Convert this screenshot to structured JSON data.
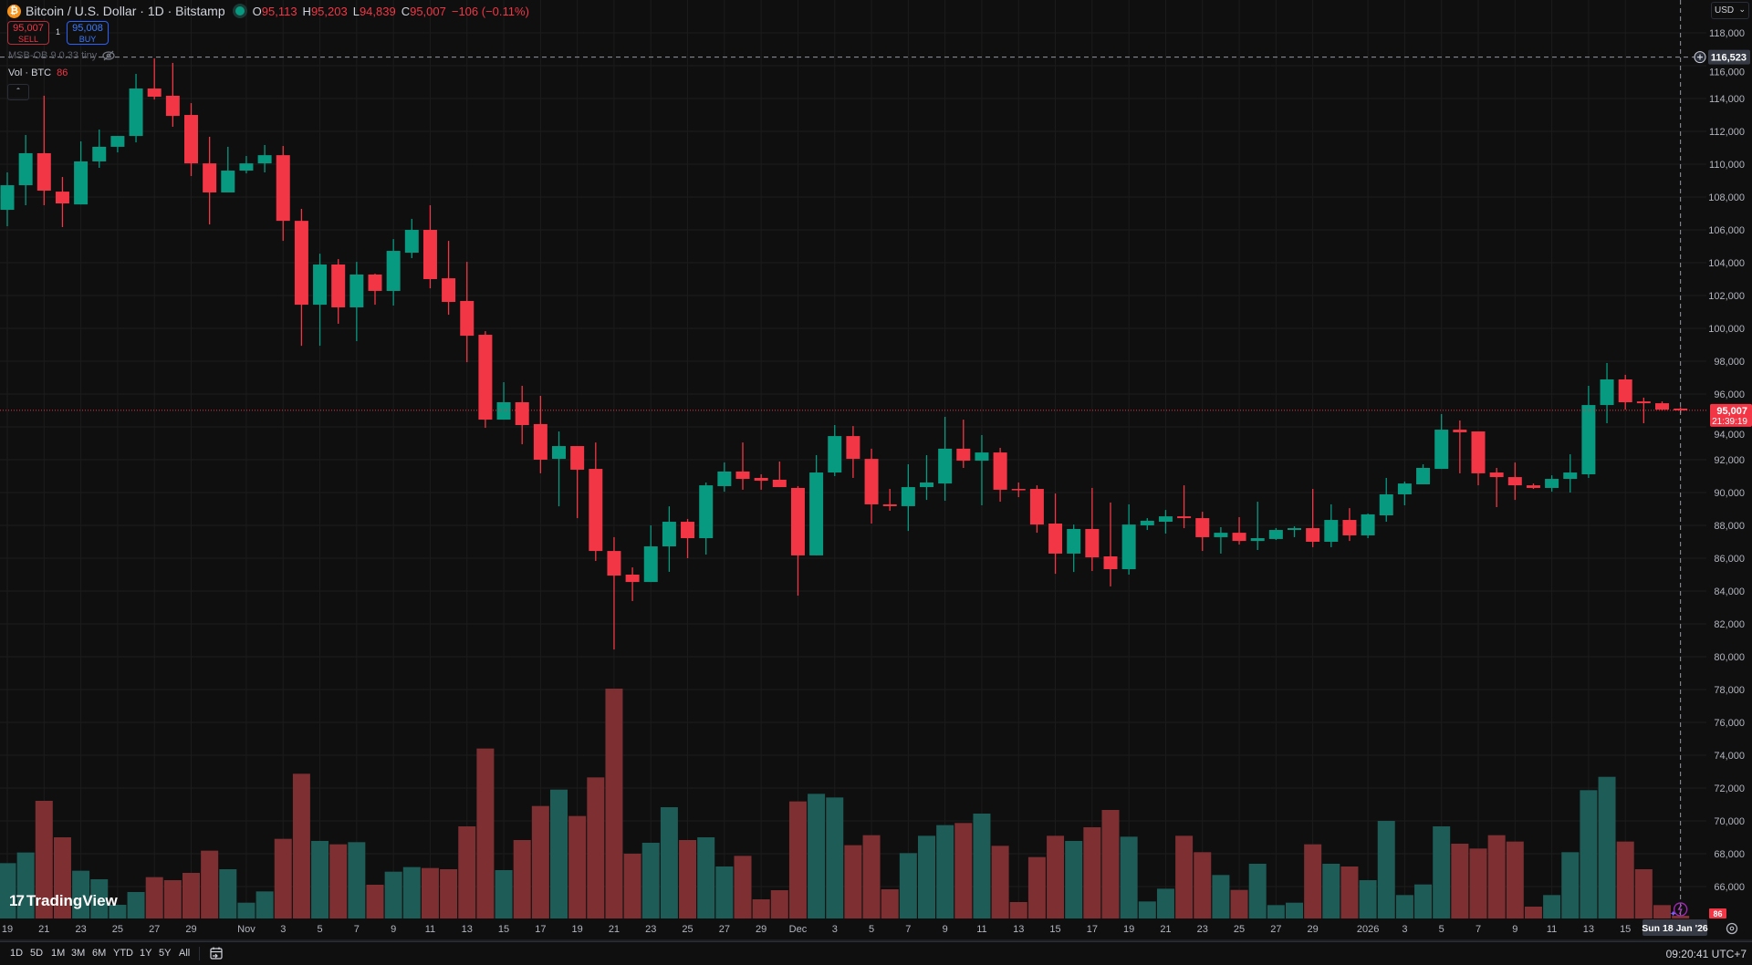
{
  "header": {
    "title": "Bitcoin / U.S. Dollar · 1D · Bitstamp",
    "open_label": "O",
    "open": "95,113",
    "high_label": "H",
    "high": "95,203",
    "low_label": "L",
    "low": "94,839",
    "close_label": "C",
    "close": "95,007",
    "change": "−106 (−0.11%)",
    "icon": "bitcoin-icon"
  },
  "trade": {
    "sell_price": "95,007",
    "sell_label": "SELL",
    "spread": "1",
    "buy_price": "95,008",
    "buy_label": "BUY"
  },
  "indicators": {
    "msb": "MSB-OB 9 0.33 tiny",
    "vol_label": "Vol · BTC",
    "vol_value": "86",
    "collapse_icon": "chevron-up-icon"
  },
  "price_axis": {
    "currency": "USD",
    "crosshair_price": "116,523",
    "last_price": "95,007",
    "countdown": "21:39:19",
    "vol_badge": "86"
  },
  "time_axis": {
    "crosshair_date": "Sun 18 Jan '26"
  },
  "toolbar": {
    "ranges": [
      "1D",
      "5D",
      "1M",
      "3M",
      "6M",
      "YTD",
      "1Y",
      "5Y",
      "All"
    ],
    "clock": "09:20:41 UTC+7"
  },
  "brand": "TradingView",
  "colors": {
    "up": "#089981",
    "down": "#f23645",
    "vol_up": "#1d5c57",
    "vol_down": "#7d2f31",
    "background": "#0f0f0f",
    "grid": "#1c1c1c"
  },
  "chart_data": {
    "type": "candlestick",
    "fields": [
      "date",
      "open",
      "high",
      "low",
      "close",
      "volume"
    ],
    "crosshair_price": 116523,
    "last_price": 95007,
    "ylim": [
      64000,
      120000
    ],
    "grid": true,
    "y_ticks": [
      66000,
      68000,
      70000,
      72000,
      74000,
      76000,
      78000,
      80000,
      82000,
      84000,
      86000,
      88000,
      90000,
      92000,
      94000,
      96000,
      98000,
      100000,
      102000,
      104000,
      106000,
      108000,
      110000,
      112000,
      114000,
      116000,
      118000
    ],
    "x_ticks": [
      [
        "19",
        "2025-10-19"
      ],
      [
        "21",
        "2025-10-21"
      ],
      [
        "23",
        "2025-10-23"
      ],
      [
        "25",
        "2025-10-25"
      ],
      [
        "27",
        "2025-10-27"
      ],
      [
        "29",
        "2025-10-29"
      ],
      [
        "Nov",
        "2025-11-01"
      ],
      [
        "3",
        "2025-11-03"
      ],
      [
        "5",
        "2025-11-05"
      ],
      [
        "7",
        "2025-11-07"
      ],
      [
        "9",
        "2025-11-09"
      ],
      [
        "11",
        "2025-11-11"
      ],
      [
        "13",
        "2025-11-13"
      ],
      [
        "15",
        "2025-11-15"
      ],
      [
        "17",
        "2025-11-17"
      ],
      [
        "19",
        "2025-11-19"
      ],
      [
        "21",
        "2025-11-21"
      ],
      [
        "23",
        "2025-11-23"
      ],
      [
        "25",
        "2025-11-25"
      ],
      [
        "27",
        "2025-11-27"
      ],
      [
        "29",
        "2025-11-29"
      ],
      [
        "Dec",
        "2025-12-01"
      ],
      [
        "3",
        "2025-12-03"
      ],
      [
        "5",
        "2025-12-05"
      ],
      [
        "7",
        "2025-12-07"
      ],
      [
        "9",
        "2025-12-09"
      ],
      [
        "11",
        "2025-12-11"
      ],
      [
        "13",
        "2025-12-13"
      ],
      [
        "15",
        "2025-12-15"
      ],
      [
        "17",
        "2025-12-17"
      ],
      [
        "19",
        "2025-12-19"
      ],
      [
        "21",
        "2025-12-21"
      ],
      [
        "23",
        "2025-12-23"
      ],
      [
        "25",
        "2025-12-25"
      ],
      [
        "27",
        "2025-12-27"
      ],
      [
        "29",
        "2025-12-29"
      ],
      [
        "2026",
        "2026-01-01"
      ],
      [
        "3",
        "2026-01-03"
      ],
      [
        "5",
        "2026-01-05"
      ],
      [
        "7",
        "2026-01-07"
      ],
      [
        "9",
        "2026-01-09"
      ],
      [
        "11",
        "2026-01-11"
      ],
      [
        "13",
        "2026-01-13"
      ],
      [
        "15",
        "2026-01-15"
      ]
    ],
    "candles": [
      [
        "2025-10-19",
        107220,
        109500,
        106220,
        108720,
        1729
      ],
      [
        "2025-10-20",
        108720,
        111780,
        107500,
        110670,
        2062
      ],
      [
        "2025-10-21",
        110670,
        114170,
        107500,
        108390,
        3677
      ],
      [
        "2025-10-22",
        108330,
        109220,
        106170,
        107610,
        2537
      ],
      [
        "2025-10-23",
        107550,
        111390,
        107550,
        110170,
        1492
      ],
      [
        "2025-10-24",
        110170,
        112110,
        109780,
        111060,
        1226
      ],
      [
        "2025-10-25",
        111060,
        111720,
        110720,
        111720,
        428
      ],
      [
        "2025-10-26",
        111720,
        115500,
        111330,
        114610,
        827
      ],
      [
        "2025-10-27",
        114610,
        116440,
        113940,
        114110,
        1292
      ],
      [
        "2025-10-28",
        114170,
        116170,
        112280,
        112940,
        1197
      ],
      [
        "2025-10-29",
        113000,
        113720,
        109280,
        110050,
        1425
      ],
      [
        "2025-10-30",
        110050,
        111670,
        106330,
        108280,
        2119
      ],
      [
        "2025-10-31",
        108280,
        111060,
        108280,
        109610,
        1539
      ],
      [
        "2025-11-01",
        109610,
        110500,
        109440,
        110050,
        494
      ],
      [
        "2025-11-02",
        110050,
        111170,
        109500,
        110550,
        846
      ],
      [
        "2025-11-03",
        110550,
        111110,
        105330,
        106550,
        2489
      ],
      [
        "2025-11-04",
        106550,
        107280,
        98940,
        101440,
        4522
      ],
      [
        "2025-11-05",
        101440,
        104550,
        98940,
        103890,
        2423
      ],
      [
        "2025-11-06",
        103890,
        104220,
        100280,
        101280,
        2318
      ],
      [
        "2025-11-07",
        101280,
        104050,
        99220,
        103280,
        2385
      ],
      [
        "2025-11-08",
        103280,
        103330,
        101440,
        102280,
        1055
      ],
      [
        "2025-11-09",
        102280,
        105440,
        101390,
        104720,
        1463
      ],
      [
        "2025-11-10",
        104610,
        106670,
        104280,
        106000,
        1606
      ],
      [
        "2025-11-11",
        106000,
        107500,
        102440,
        103000,
        1577
      ],
      [
        "2025-11-12",
        103050,
        105330,
        100830,
        101610,
        1539
      ],
      [
        "2025-11-13",
        101670,
        104050,
        97940,
        99550,
        2879
      ],
      [
        "2025-11-14",
        99610,
        99830,
        93940,
        94440,
        5311
      ],
      [
        "2025-11-15",
        94440,
        96720,
        94440,
        95500,
        1511
      ],
      [
        "2025-11-16",
        95500,
        96500,
        92940,
        94110,
        2451
      ],
      [
        "2025-11-17",
        94170,
        95890,
        91170,
        92000,
        3515
      ],
      [
        "2025-11-18",
        92050,
        93720,
        89160,
        92830,
        4028
      ],
      [
        "2025-11-19",
        92830,
        92830,
        88440,
        91390,
        3202
      ],
      [
        "2025-11-20",
        91440,
        93050,
        85830,
        86440,
        4408
      ],
      [
        "2025-11-21",
        86440,
        87280,
        80440,
        84940,
        7182
      ],
      [
        "2025-11-22",
        85000,
        85440,
        83390,
        84550,
        2024
      ],
      [
        "2025-11-23",
        84550,
        88000,
        84550,
        86720,
        2366
      ],
      [
        "2025-11-24",
        86720,
        89160,
        85170,
        88220,
        3477
      ],
      [
        "2025-11-25",
        88220,
        88390,
        86000,
        87220,
        2451
      ],
      [
        "2025-11-26",
        87220,
        90610,
        86220,
        90440,
        2537
      ],
      [
        "2025-11-27",
        90390,
        91830,
        90050,
        91280,
        1625
      ],
      [
        "2025-11-28",
        91280,
        93050,
        90170,
        90830,
        1957
      ],
      [
        "2025-11-29",
        90890,
        91110,
        90170,
        90720,
        599
      ],
      [
        "2025-11-30",
        90780,
        91890,
        90330,
        90330,
        884
      ],
      [
        "2025-12-01",
        90280,
        90390,
        83720,
        86170,
        3658
      ],
      [
        "2025-12-02",
        86170,
        92280,
        86170,
        91220,
        3895
      ],
      [
        "2025-12-03",
        91220,
        94110,
        91000,
        93440,
        3781
      ],
      [
        "2025-12-04",
        93440,
        94050,
        90890,
        92050,
        2290
      ],
      [
        "2025-12-05",
        92050,
        92670,
        88110,
        89280,
        2603
      ],
      [
        "2025-12-06",
        89280,
        90220,
        88890,
        89170,
        912
      ],
      [
        "2025-12-07",
        89170,
        91720,
        87660,
        90330,
        2043
      ],
      [
        "2025-12-08",
        90330,
        92280,
        89550,
        90610,
        2584
      ],
      [
        "2025-12-09",
        90550,
        94610,
        89500,
        92670,
        2917
      ],
      [
        "2025-12-10",
        92670,
        94440,
        91500,
        91940,
        2983
      ],
      [
        "2025-12-11",
        91940,
        93500,
        89220,
        92440,
        3278
      ],
      [
        "2025-12-12",
        92440,
        92720,
        89440,
        90170,
        2271
      ],
      [
        "2025-12-13",
        90220,
        90610,
        89720,
        90170,
        513
      ],
      [
        "2025-12-14",
        90220,
        90440,
        87550,
        88050,
        1919
      ],
      [
        "2025-12-15",
        88110,
        89940,
        85050,
        86280,
        2584
      ],
      [
        "2025-12-16",
        86280,
        88050,
        85160,
        87780,
        2423
      ],
      [
        "2025-12-17",
        87780,
        90280,
        85220,
        86050,
        2850
      ],
      [
        "2025-12-18",
        86110,
        89390,
        84280,
        85330,
        3392
      ],
      [
        "2025-12-19",
        85330,
        89280,
        85000,
        88050,
        2556
      ],
      [
        "2025-12-20",
        88000,
        88440,
        87720,
        88280,
        532
      ],
      [
        "2025-12-21",
        88220,
        88940,
        87500,
        88550,
        931
      ],
      [
        "2025-12-22",
        88550,
        90440,
        87830,
        88440,
        2584
      ],
      [
        "2025-12-23",
        88440,
        88830,
        86440,
        87280,
        2071
      ],
      [
        "2025-12-24",
        87280,
        87890,
        86280,
        87550,
        1359
      ],
      [
        "2025-12-25",
        87550,
        88500,
        86830,
        87050,
        893
      ],
      [
        "2025-12-26",
        87050,
        89440,
        86500,
        87220,
        1710
      ],
      [
        "2025-12-27",
        87170,
        87830,
        87110,
        87720,
        418
      ],
      [
        "2025-12-28",
        87720,
        87940,
        87280,
        87830,
        494
      ],
      [
        "2025-12-29",
        87830,
        90220,
        86670,
        87000,
        2318
      ],
      [
        "2025-12-30",
        87000,
        89280,
        86670,
        88330,
        1710
      ],
      [
        "2025-12-31",
        88330,
        89050,
        87050,
        87390,
        1625
      ],
      [
        "2026-01-01",
        87390,
        88720,
        87220,
        88670,
        1197
      ],
      [
        "2026-01-02",
        88610,
        90890,
        88220,
        89890,
        3050
      ],
      [
        "2026-01-03",
        89890,
        90670,
        89220,
        90550,
        732
      ],
      [
        "2026-01-04",
        90500,
        91720,
        90500,
        91500,
        1064
      ],
      [
        "2026-01-05",
        91440,
        94780,
        91440,
        93830,
        2879
      ],
      [
        "2026-01-06",
        93830,
        94390,
        91170,
        93670,
        2337
      ],
      [
        "2026-01-07",
        93720,
        93720,
        90440,
        91170,
        2185
      ],
      [
        "2026-01-08",
        91220,
        91500,
        89110,
        90940,
        2603
      ],
      [
        "2026-01-09",
        90940,
        91830,
        89550,
        90440,
        2404
      ],
      [
        "2026-01-10",
        90440,
        90550,
        90220,
        90280,
        371
      ],
      [
        "2026-01-11",
        90280,
        91050,
        90050,
        90830,
        732
      ],
      [
        "2026-01-12",
        90830,
        92330,
        90000,
        91220,
        2071
      ],
      [
        "2026-01-13",
        91110,
        96500,
        90890,
        95330,
        4009
      ],
      [
        "2026-01-14",
        95330,
        97890,
        94220,
        96890,
        4427
      ],
      [
        "2026-01-15",
        96890,
        97170,
        95050,
        95500,
        2404
      ],
      [
        "2026-01-16",
        95550,
        95780,
        94220,
        95440,
        1539
      ],
      [
        "2026-01-17",
        95440,
        95550,
        95000,
        95050,
        418
      ],
      [
        "2026-01-18",
        95113,
        95203,
        94839,
        95007,
        86
      ]
    ]
  }
}
